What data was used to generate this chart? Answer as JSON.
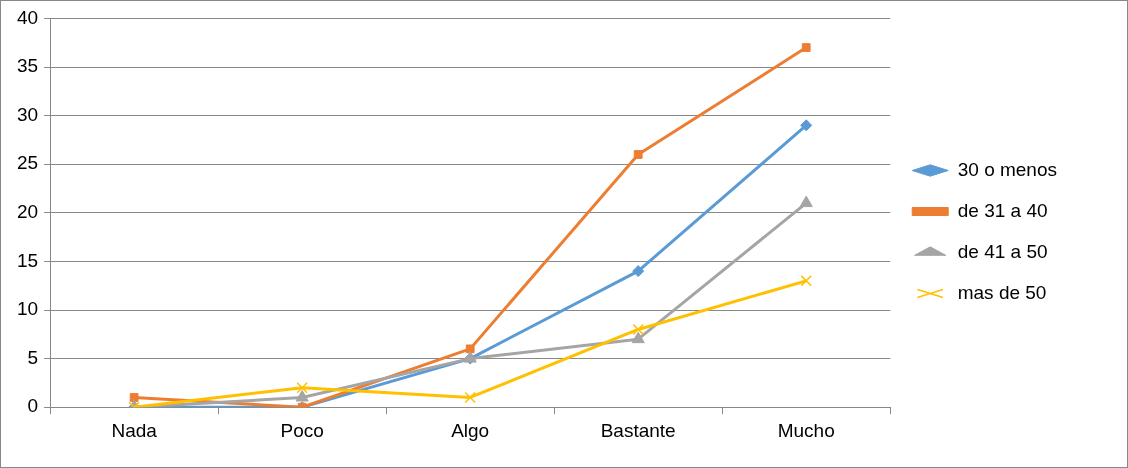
{
  "chart_data": {
    "type": "line",
    "categories": [
      "Nada",
      "Poco",
      "Algo",
      "Bastante",
      "Mucho"
    ],
    "series": [
      {
        "name": "30 o menos",
        "color": "#5b9bd5",
        "marker": "diamond",
        "values": [
          0,
          0,
          5,
          14,
          29
        ]
      },
      {
        "name": "de 31 a 40",
        "color": "#ed7d31",
        "marker": "square",
        "values": [
          1,
          0,
          6,
          26,
          37
        ]
      },
      {
        "name": "de 41 a 50",
        "color": "#a5a5a5",
        "marker": "triangle",
        "values": [
          0,
          1,
          5,
          7,
          21
        ]
      },
      {
        "name": "mas de 50",
        "color": "#ffc000",
        "marker": "cross",
        "values": [
          0,
          2,
          1,
          8,
          13
        ]
      }
    ],
    "ylim": [
      0,
      40
    ],
    "yticks": [
      0,
      5,
      10,
      15,
      20,
      25,
      30,
      35,
      40
    ],
    "grid": "y",
    "legend": "right"
  }
}
